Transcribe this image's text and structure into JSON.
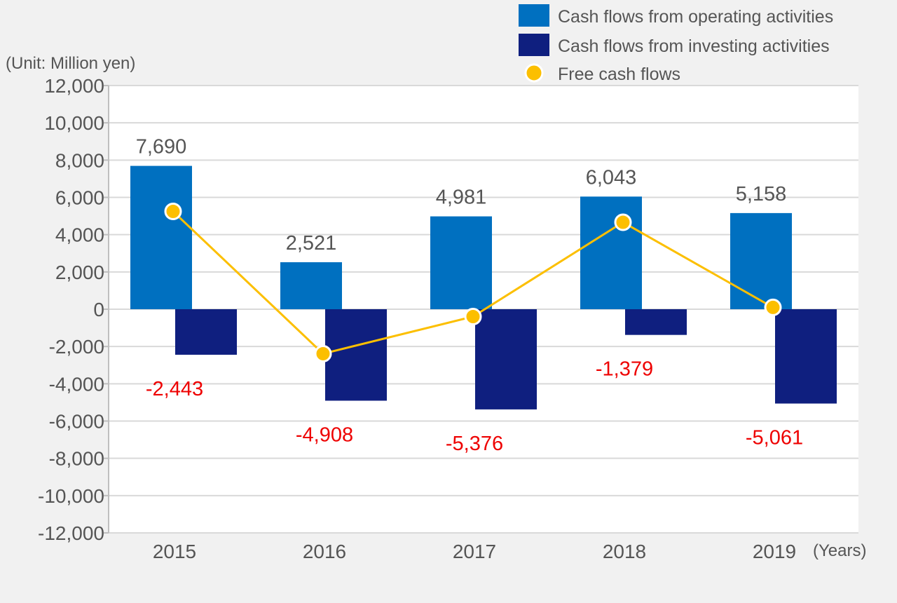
{
  "chart_data": {
    "type": "bar",
    "unit_label": "(Unit: Million yen)",
    "x_unit_label": "(Years)",
    "categories": [
      "2015",
      "2016",
      "2017",
      "2018",
      "2019"
    ],
    "ylim": [
      -12000,
      12000
    ],
    "yticks": [
      12000,
      10000,
      8000,
      6000,
      4000,
      2000,
      0,
      -2000,
      -4000,
      -6000,
      -8000,
      -10000,
      -12000
    ],
    "ytick_labels": [
      "12,000",
      "10,000",
      "8,000",
      "6,000",
      "4,000",
      "2,000",
      "0",
      "-2,000",
      "-4,000",
      "-6,000",
      "-8,000",
      "-10,000",
      "-12,000"
    ],
    "grid": true,
    "legend_position": "top-right",
    "series": [
      {
        "name": "Cash flows from operating activities",
        "kind": "bar",
        "color": "#0070c0",
        "values": [
          7690,
          2521,
          4981,
          6043,
          5158
        ],
        "labels": [
          "7,690",
          "2,521",
          "4,981",
          "6,043",
          "5,158"
        ]
      },
      {
        "name": "Cash flows from investing activities",
        "kind": "bar",
        "color": "#0f1f7f",
        "values": [
          -2443,
          -4908,
          -5376,
          -1379,
          -5061
        ],
        "labels": [
          "-2,443",
          "-4,908",
          "-5,376",
          "-1,379",
          "-5,061"
        ]
      },
      {
        "name": "Free cash flows",
        "kind": "line",
        "color": "#fcbf00",
        "values": [
          5247,
          -2387,
          -395,
          4664,
          97
        ]
      }
    ]
  }
}
